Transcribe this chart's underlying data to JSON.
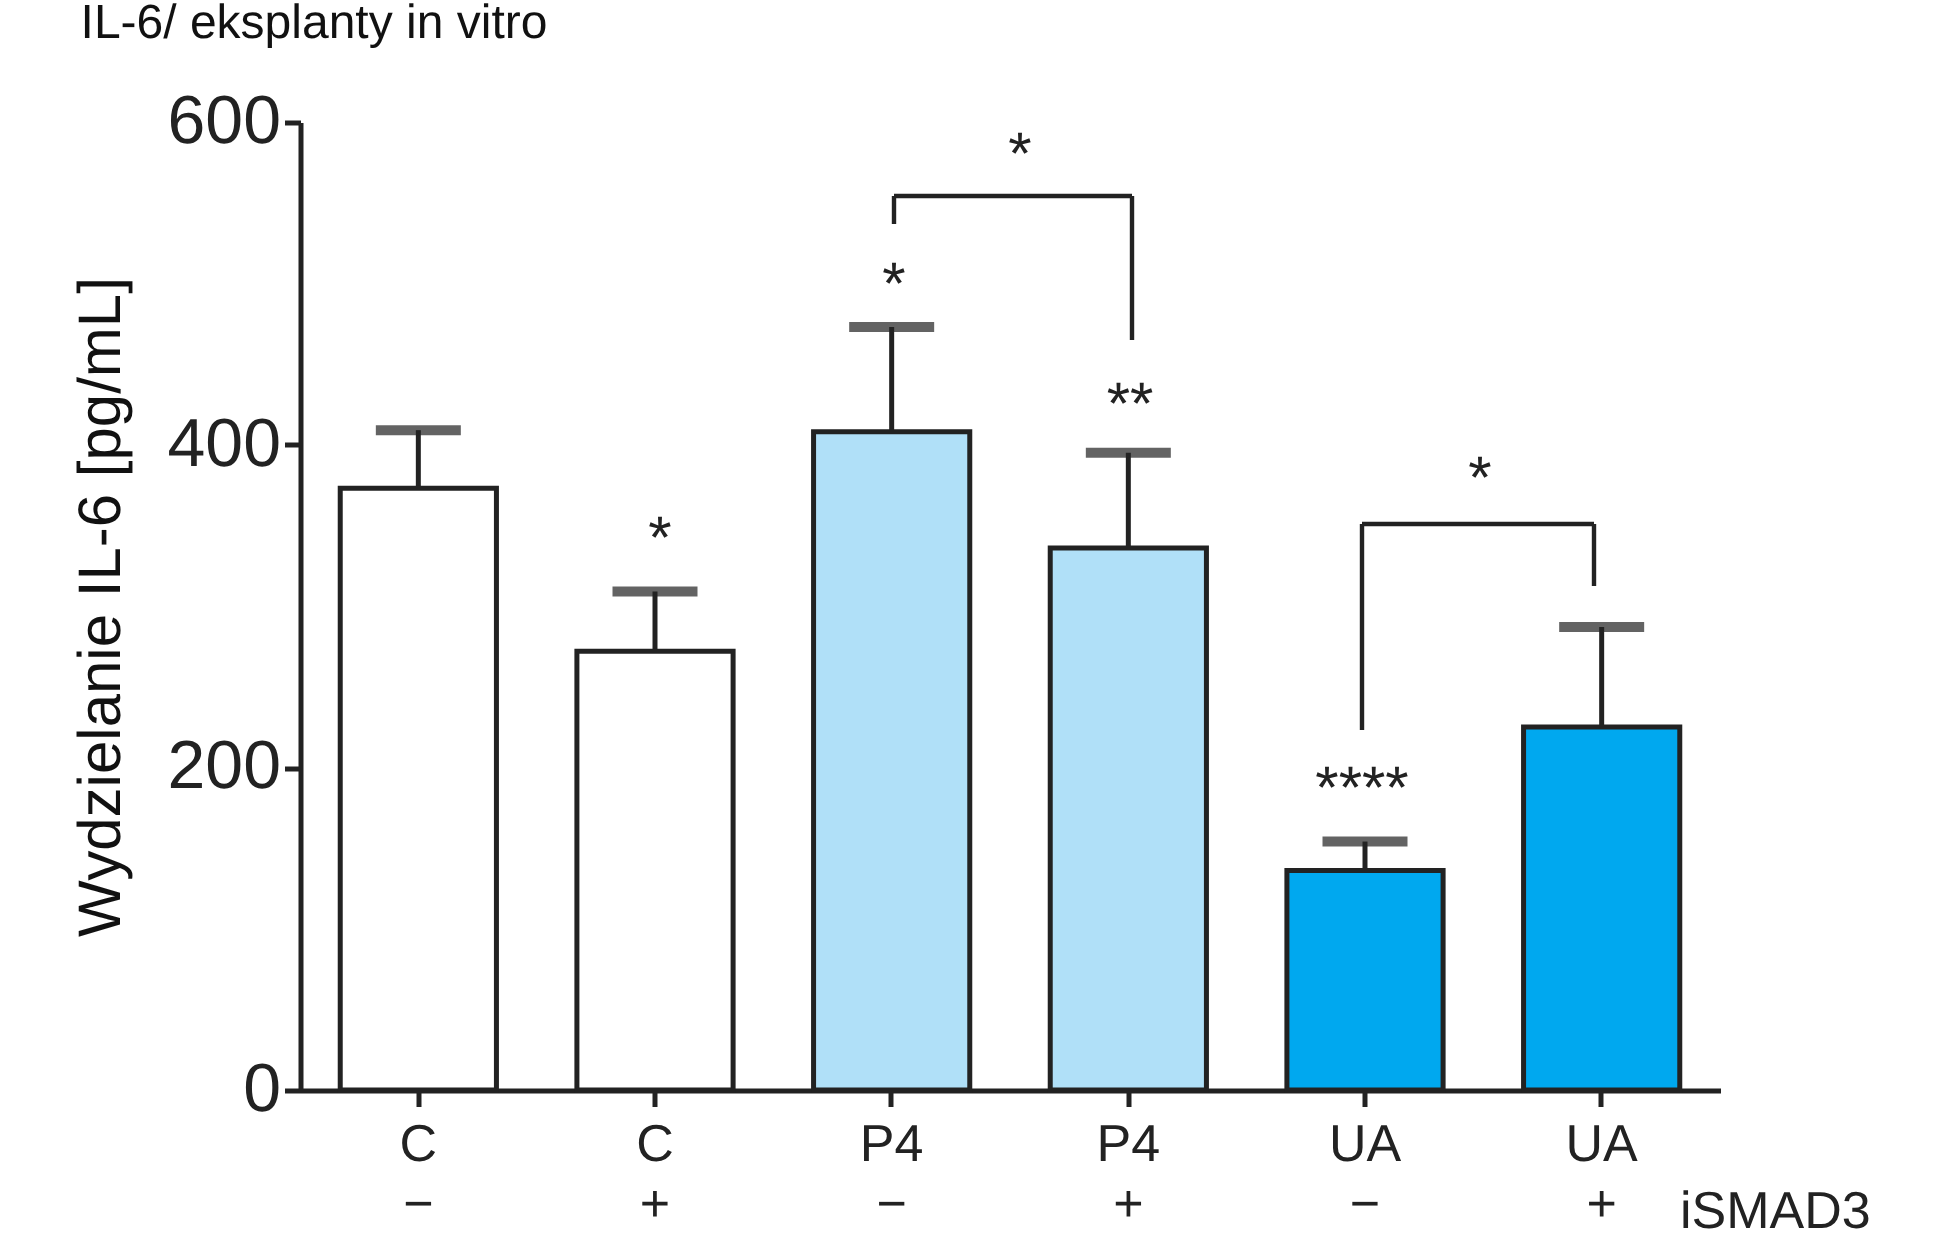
{
  "chart_data": {
    "type": "bar",
    "title": "IL-6/ eksplanty in vitro",
    "ylabel": "Wydzielanie IL-6 [pg/mL]",
    "categories": [
      "C\n−",
      "C\n+",
      "P4\n−",
      "P4\n+",
      "UA\n−",
      "UA\n+"
    ],
    "values": [
      373,
      272,
      408,
      336,
      136,
      225
    ],
    "errors": [
      36,
      37,
      65,
      59,
      18,
      62
    ],
    "colors": [
      "#ffffff",
      "#ffffff",
      "#b0e0f8",
      "#b0e0f8",
      "#00a8ef",
      "#00a8ef"
    ],
    "ylim": [
      0,
      600
    ],
    "yticks": [
      0,
      200,
      400,
      600
    ],
    "grid": false,
    "annotations": [
      "*",
      "*",
      "**",
      "****",
      "*",
      "*",
      "iSMAD3"
    ]
  }
}
